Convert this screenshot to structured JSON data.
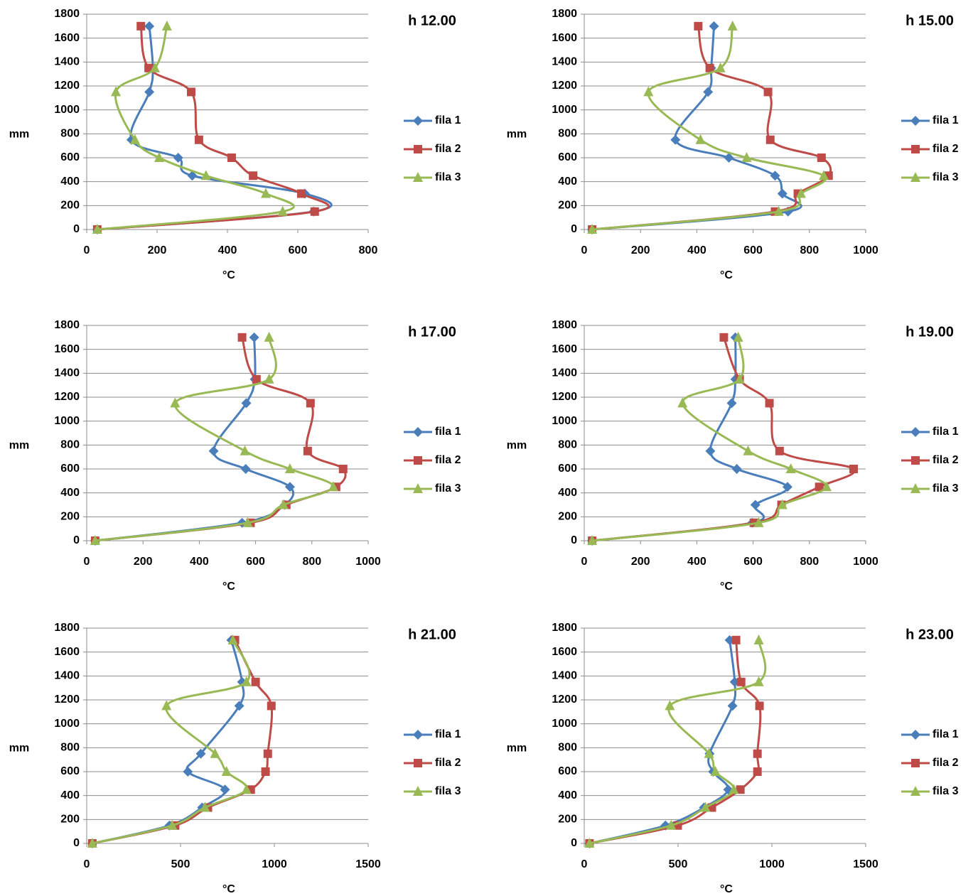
{
  "chart_data": [
    {
      "type": "line",
      "title": "h 12.00",
      "xlabel": "°C",
      "ylabel": "mm",
      "xlim": [
        0,
        800
      ],
      "xticks": [
        0,
        200,
        400,
        600,
        800
      ],
      "ylim": [
        0,
        1800
      ],
      "yticks": [
        0,
        200,
        400,
        600,
        800,
        1000,
        1200,
        1400,
        1600,
        1800
      ],
      "grid": true,
      "legend": "right",
      "y": [
        0,
        150,
        300,
        450,
        600,
        750,
        1150,
        1350,
        1700
      ],
      "series": [
        {
          "name": "fila 1",
          "color": "#4a7ebb",
          "marker": "diamond",
          "x": [
            30,
            645,
            620,
            300,
            260,
            127,
            178,
            188,
            178
          ]
        },
        {
          "name": "fila 2",
          "color": "#be4b48",
          "marker": "square",
          "x": [
            30,
            648,
            610,
            473,
            412,
            319,
            297,
            176,
            154
          ]
        },
        {
          "name": "fila 3",
          "color": "#98b954",
          "marker": "triangle",
          "x": [
            30,
            557,
            509,
            339,
            206,
            137,
            83,
            194,
            228
          ]
        }
      ]
    },
    {
      "type": "line",
      "title": "h 15.00",
      "xlabel": "°C",
      "ylabel": "mm",
      "xlim": [
        0,
        1000
      ],
      "xticks": [
        0,
        200,
        400,
        600,
        800,
        1000
      ],
      "ylim": [
        0,
        1800
      ],
      "yticks": [
        0,
        200,
        400,
        600,
        800,
        1000,
        1200,
        1400,
        1600,
        1800
      ],
      "grid": true,
      "legend": "right",
      "y": [
        0,
        150,
        300,
        450,
        600,
        750,
        1150,
        1350,
        1700
      ],
      "series": [
        {
          "name": "fila 1",
          "color": "#4a7ebb",
          "marker": "diamond",
          "x": [
            28,
            724,
            704,
            678,
            514,
            324,
            440,
            451,
            461
          ]
        },
        {
          "name": "fila 2",
          "color": "#be4b48",
          "marker": "square",
          "x": [
            28,
            678,
            759,
            868,
            843,
            661,
            653,
            446,
            405
          ]
        },
        {
          "name": "fila 3",
          "color": "#98b954",
          "marker": "triangle",
          "x": [
            28,
            691,
            770,
            851,
            577,
            413,
            228,
            484,
            527
          ]
        }
      ]
    },
    {
      "type": "line",
      "title": "h 17.00",
      "xlabel": "°C",
      "ylabel": "mm",
      "xlim": [
        0,
        1000
      ],
      "xticks": [
        0,
        200,
        400,
        600,
        800,
        1000
      ],
      "ylim": [
        0,
        1800
      ],
      "yticks": [
        0,
        200,
        400,
        600,
        800,
        1000,
        1200,
        1400,
        1600,
        1800
      ],
      "grid": true,
      "legend": "right",
      "y": [
        0,
        150,
        300,
        450,
        600,
        750,
        1150,
        1350,
        1700
      ],
      "series": [
        {
          "name": "fila 1",
          "color": "#4a7ebb",
          "marker": "diamond",
          "x": [
            30,
            552,
            704,
            722,
            565,
            451,
            567,
            597,
            595
          ]
        },
        {
          "name": "fila 2",
          "color": "#be4b48",
          "marker": "square",
          "x": [
            30,
            582,
            709,
            886,
            911,
            785,
            795,
            603,
            552
          ]
        },
        {
          "name": "fila 3",
          "color": "#98b954",
          "marker": "triangle",
          "x": [
            30,
            572,
            699,
            876,
            722,
            562,
            314,
            648,
            648
          ]
        }
      ]
    },
    {
      "type": "line",
      "title": "h 19.00",
      "xlabel": "°C",
      "ylabel": "mm",
      "xlim": [
        0,
        1000
      ],
      "xticks": [
        0,
        200,
        400,
        600,
        800,
        1000
      ],
      "ylim": [
        0,
        1800
      ],
      "yticks": [
        0,
        200,
        400,
        600,
        800,
        1000,
        1200,
        1400,
        1600,
        1800
      ],
      "grid": true,
      "legend": "right",
      "y": [
        0,
        150,
        300,
        450,
        600,
        750,
        1150,
        1350,
        1700
      ],
      "series": [
        {
          "name": "fila 1",
          "color": "#4a7ebb",
          "marker": "diamond",
          "x": [
            28,
            597,
            608,
            722,
            542,
            448,
            524,
            537,
            537
          ]
        },
        {
          "name": "fila 2",
          "color": "#be4b48",
          "marker": "square",
          "x": [
            28,
            603,
            701,
            835,
            957,
            694,
            658,
            552,
            496
          ]
        },
        {
          "name": "fila 3",
          "color": "#98b954",
          "marker": "triangle",
          "x": [
            28,
            620,
            704,
            861,
            734,
            582,
            349,
            552,
            547
          ]
        }
      ]
    },
    {
      "type": "line",
      "title": "h 21.00",
      "xlabel": "°C",
      "ylabel": "mm",
      "xlim": [
        0,
        1500
      ],
      "xticks": [
        0,
        500,
        1000,
        1500
      ],
      "ylim": [
        0,
        1800
      ],
      "yticks": [
        0,
        200,
        400,
        600,
        800,
        1000,
        1200,
        1400,
        1600,
        1800
      ],
      "grid": true,
      "legend": "right",
      "y": [
        0,
        150,
        300,
        450,
        600,
        750,
        1150,
        1350,
        1700
      ],
      "series": [
        {
          "name": "fila 1",
          "color": "#4a7ebb",
          "marker": "diamond",
          "x": [
            30,
            441,
            615,
            737,
            539,
            608,
            813,
            828,
            771
          ]
        },
        {
          "name": "fila 2",
          "color": "#be4b48",
          "marker": "square",
          "x": [
            30,
            471,
            646,
            874,
            953,
            965,
            984,
            900,
            790
          ]
        },
        {
          "name": "fila 3",
          "color": "#98b954",
          "marker": "triangle",
          "x": [
            30,
            456,
            630,
            851,
            745,
            684,
            425,
            851,
            779
          ]
        }
      ]
    },
    {
      "type": "line",
      "title": "h 23.00",
      "xlabel": "°C",
      "ylabel": "mm",
      "xlim": [
        0,
        1500
      ],
      "xticks": [
        0,
        500,
        1000,
        1500
      ],
      "ylim": [
        0,
        1800
      ],
      "yticks": [
        0,
        200,
        400,
        600,
        800,
        1000,
        1200,
        1400,
        1600,
        1800
      ],
      "grid": true,
      "legend": "right",
      "y": [
        0,
        150,
        300,
        450,
        600,
        750,
        1150,
        1350,
        1700
      ],
      "series": [
        {
          "name": "fila 1",
          "color": "#4a7ebb",
          "marker": "diamond",
          "x": [
            28,
            433,
            638,
            767,
            687,
            668,
            790,
            802,
            775
          ]
        },
        {
          "name": "fila 2",
          "color": "#be4b48",
          "marker": "square",
          "x": [
            28,
            498,
            680,
            832,
            923,
            923,
            934,
            836,
            809
          ]
        },
        {
          "name": "fila 3",
          "color": "#98b954",
          "marker": "triangle",
          "x": [
            28,
            463,
            646,
            797,
            699,
            665,
            456,
            930,
            930
          ]
        }
      ]
    }
  ]
}
